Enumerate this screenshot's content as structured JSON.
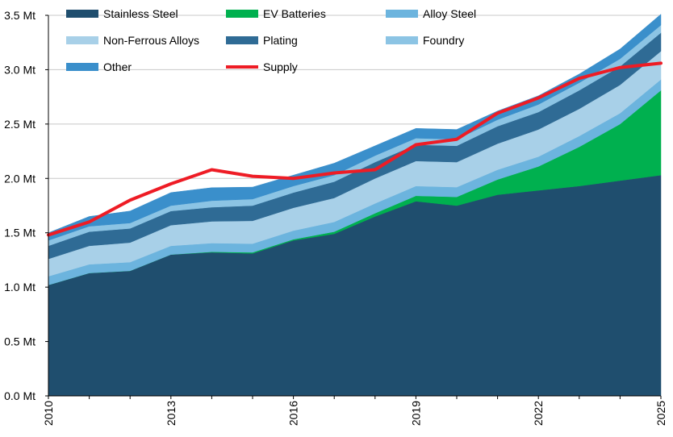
{
  "chart_data": {
    "type": "area",
    "stacked": true,
    "title": "",
    "xlabel": "",
    "ylabel": "",
    "unit_suffix": " Mt",
    "x": [
      2010,
      2011,
      2012,
      2013,
      2014,
      2015,
      2016,
      2017,
      2018,
      2019,
      2020,
      2021,
      2022,
      2023,
      2024,
      2025
    ],
    "x_ticks": [
      "2010",
      "2013",
      "2016",
      "2019",
      "2022",
      "2025"
    ],
    "y_ticks": [
      "0.0 Mt",
      "0.5 Mt",
      "1.0 Mt",
      "1.5 Mt",
      "2.0 Mt",
      "2.5 Mt",
      "3.0 Mt",
      "3.5 Mt"
    ],
    "ylim": [
      0,
      3.5
    ],
    "grid": "horizontal",
    "legend_position": "top",
    "series": [
      {
        "name": "Stainless Steel",
        "color": "#1f4e6e",
        "values": [
          1.02,
          1.13,
          1.15,
          1.3,
          1.32,
          1.31,
          1.43,
          1.49,
          1.65,
          1.79,
          1.75,
          1.85,
          1.89,
          1.93,
          1.98,
          2.03
        ]
      },
      {
        "name": "EV Batteries",
        "color": "#00b04f",
        "values": [
          0.0,
          0.0,
          0.0,
          0.0,
          0.005,
          0.01,
          0.01,
          0.02,
          0.03,
          0.05,
          0.08,
          0.14,
          0.22,
          0.36,
          0.52,
          0.78
        ]
      },
      {
        "name": "Alloy Steel",
        "color": "#6cb4de",
        "values": [
          0.08,
          0.08,
          0.08,
          0.08,
          0.08,
          0.08,
          0.08,
          0.09,
          0.09,
          0.09,
          0.09,
          0.09,
          0.09,
          0.1,
          0.1,
          0.1
        ]
      },
      {
        "name": "Non-Ferrous Alloys",
        "color": "#a8d0e8",
        "values": [
          0.16,
          0.17,
          0.18,
          0.19,
          0.2,
          0.21,
          0.21,
          0.22,
          0.23,
          0.23,
          0.23,
          0.24,
          0.25,
          0.25,
          0.26,
          0.26
        ]
      },
      {
        "name": "Plating",
        "color": "#2f6b95",
        "values": [
          0.12,
          0.13,
          0.13,
          0.13,
          0.13,
          0.14,
          0.14,
          0.15,
          0.15,
          0.15,
          0.15,
          0.16,
          0.16,
          0.17,
          0.17,
          0.17
        ]
      },
      {
        "name": "Foundry",
        "color": "#8cc4e4",
        "values": [
          0.05,
          0.05,
          0.05,
          0.05,
          0.06,
          0.06,
          0.06,
          0.06,
          0.06,
          0.06,
          0.06,
          0.06,
          0.07,
          0.07,
          0.07,
          0.07
        ]
      },
      {
        "name": "Other",
        "color": "#3a8fcb",
        "values": [
          0.07,
          0.09,
          0.11,
          0.12,
          0.12,
          0.11,
          0.1,
          0.11,
          0.09,
          0.09,
          0.09,
          0.08,
          0.08,
          0.08,
          0.09,
          0.1
        ]
      }
    ],
    "line_series": [
      {
        "name": "Supply",
        "color": "#ee1c25",
        "values": [
          1.48,
          1.6,
          1.8,
          1.95,
          2.08,
          2.02,
          2.0,
          2.05,
          2.08,
          2.31,
          2.36,
          2.6,
          2.74,
          2.92,
          3.02,
          3.06
        ]
      }
    ],
    "legend_order": [
      "Stainless Steel",
      "EV Batteries",
      "Alloy Steel",
      "Non-Ferrous Alloys",
      "Plating",
      "Foundry",
      "Other",
      "Supply"
    ]
  }
}
